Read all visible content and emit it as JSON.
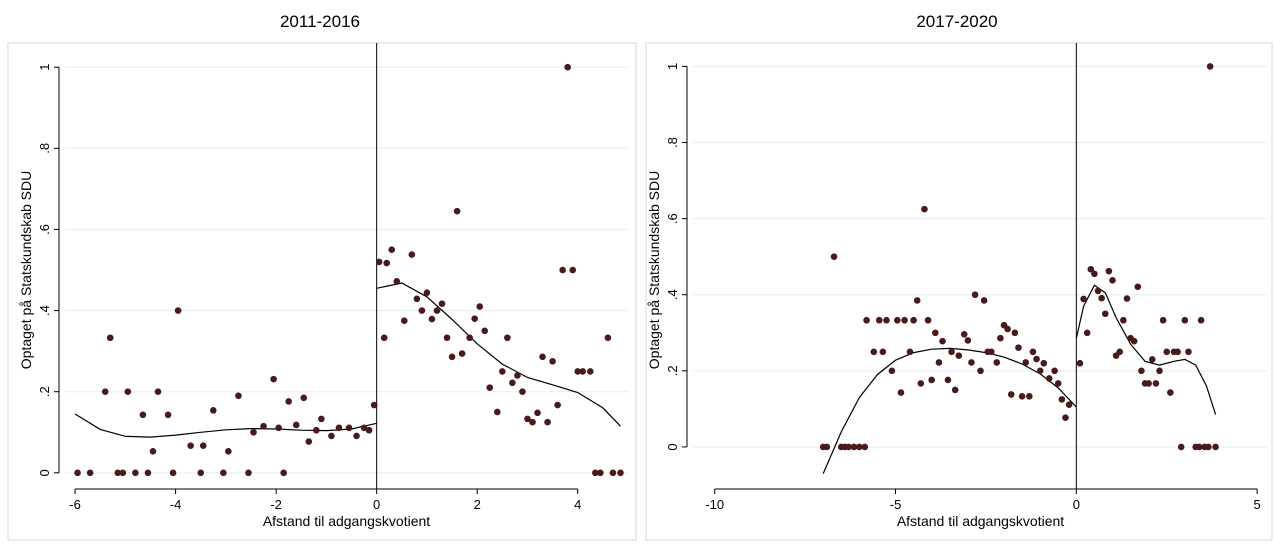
{
  "colors": {
    "marker": "#4a1a1a",
    "grid": "#e6eef2",
    "frame": "#cfd8dd",
    "axis": "#000000"
  },
  "chart_data": [
    {
      "type": "scatter",
      "title": "2011-2016",
      "xlabel": "Afstand til adgangskvotient",
      "ylabel": "Optaget på Statskundskab SDU",
      "xlim": [
        -6.2,
        5
      ],
      "ylim": [
        -0.03,
        1.03
      ],
      "xticks": [
        -6,
        -4,
        -2,
        0,
        2,
        4
      ],
      "xtick_labels": [
        "-6",
        "-4",
        "-2",
        "0",
        "2",
        "4"
      ],
      "yticks": [
        0,
        0.2,
        0.4,
        0.6,
        0.8,
        1
      ],
      "ytick_labels": [
        "0",
        ".2",
        ".4",
        ".6",
        ".8",
        "1"
      ],
      "grid": true,
      "cutoff": 0,
      "points": [
        [
          -5.95,
          0
        ],
        [
          -5.7,
          0
        ],
        [
          -5.4,
          0.2
        ],
        [
          -5.3,
          0.333
        ],
        [
          -5.15,
          0
        ],
        [
          -5.05,
          0
        ],
        [
          -4.95,
          0.2
        ],
        [
          -4.8,
          0
        ],
        [
          -4.65,
          0.143
        ],
        [
          -4.55,
          0
        ],
        [
          -4.45,
          0.053
        ],
        [
          -4.35,
          0.2
        ],
        [
          -4.15,
          0.143
        ],
        [
          -4.05,
          0
        ],
        [
          -3.95,
          0.4
        ],
        [
          -3.7,
          0.067
        ],
        [
          -3.5,
          0
        ],
        [
          -3.45,
          0.067
        ],
        [
          -3.25,
          0.154
        ],
        [
          -3.05,
          0
        ],
        [
          -2.95,
          0.053
        ],
        [
          -2.75,
          0.19
        ],
        [
          -2.55,
          0
        ],
        [
          -2.45,
          0.1
        ],
        [
          -2.25,
          0.115
        ],
        [
          -2.05,
          0.231
        ],
        [
          -1.95,
          0.111
        ],
        [
          -1.85,
          0
        ],
        [
          -1.75,
          0.176
        ],
        [
          -1.6,
          0.118
        ],
        [
          -1.45,
          0.185
        ],
        [
          -1.35,
          0.077
        ],
        [
          -1.2,
          0.105
        ],
        [
          -1.1,
          0.133
        ],
        [
          -0.9,
          0.091
        ],
        [
          -0.75,
          0.111
        ],
        [
          -0.55,
          0.111
        ],
        [
          -0.4,
          0.091
        ],
        [
          -0.25,
          0.111
        ],
        [
          -0.15,
          0.105
        ],
        [
          -0.05,
          0.167
        ],
        [
          0.05,
          0.52
        ],
        [
          0.15,
          0.333
        ],
        [
          0.2,
          0.517
        ],
        [
          0.3,
          0.55
        ],
        [
          0.4,
          0.472
        ],
        [
          0.55,
          0.375
        ],
        [
          0.7,
          0.538
        ],
        [
          0.8,
          0.429
        ],
        [
          0.9,
          0.4
        ],
        [
          1.0,
          0.444
        ],
        [
          1.1,
          0.379
        ],
        [
          1.2,
          0.4
        ],
        [
          1.3,
          0.417
        ],
        [
          1.4,
          0.333
        ],
        [
          1.5,
          0.286
        ],
        [
          1.6,
          0.645
        ],
        [
          1.7,
          0.294
        ],
        [
          1.85,
          0.333
        ],
        [
          1.95,
          0.38
        ],
        [
          2.05,
          0.41
        ],
        [
          2.15,
          0.35
        ],
        [
          2.25,
          0.21
        ],
        [
          2.4,
          0.15
        ],
        [
          2.5,
          0.25
        ],
        [
          2.6,
          0.333
        ],
        [
          2.7,
          0.222
        ],
        [
          2.8,
          0.24
        ],
        [
          2.9,
          0.2
        ],
        [
          3.0,
          0.133
        ],
        [
          3.1,
          0.125
        ],
        [
          3.2,
          0.148
        ],
        [
          3.3,
          0.286
        ],
        [
          3.4,
          0.125
        ],
        [
          3.5,
          0.275
        ],
        [
          3.6,
          0.167
        ],
        [
          3.7,
          0.5
        ],
        [
          3.8,
          1.0
        ],
        [
          3.9,
          0.5
        ],
        [
          4.0,
          0.25
        ],
        [
          4.1,
          0.25
        ],
        [
          4.25,
          0.25
        ],
        [
          4.35,
          0
        ],
        [
          4.45,
          0
        ],
        [
          4.6,
          0.333
        ],
        [
          4.7,
          0
        ],
        [
          4.85,
          0
        ]
      ],
      "fit_left": [
        [
          -6,
          0.145
        ],
        [
          -5.5,
          0.107
        ],
        [
          -5,
          0.09
        ],
        [
          -4.5,
          0.088
        ],
        [
          -4,
          0.093
        ],
        [
          -3.5,
          0.1
        ],
        [
          -3,
          0.106
        ],
        [
          -2.5,
          0.109
        ],
        [
          -2,
          0.108
        ],
        [
          -1.5,
          0.105
        ],
        [
          -1,
          0.104
        ],
        [
          -0.5,
          0.108
        ],
        [
          0,
          0.122
        ]
      ],
      "fit_right": [
        [
          0,
          0.455
        ],
        [
          0.5,
          0.468
        ],
        [
          1,
          0.434
        ],
        [
          1.5,
          0.378
        ],
        [
          2,
          0.318
        ],
        [
          2.5,
          0.268
        ],
        [
          3,
          0.235
        ],
        [
          3.5,
          0.217
        ],
        [
          4,
          0.198
        ],
        [
          4.5,
          0.16
        ],
        [
          4.85,
          0.115
        ]
      ]
    },
    {
      "type": "scatter",
      "title": "2017-2020",
      "xlabel": "Afstand til adgangskvotient",
      "ylabel": "Optaget på Statskundskab SDU",
      "xlim": [
        -10.6,
        5.3
      ],
      "ylim": [
        -0.1,
        1.03
      ],
      "xticks": [
        -10,
        -5,
        0,
        5
      ],
      "xtick_labels": [
        "-10",
        "-5",
        "0",
        "5"
      ],
      "yticks": [
        0,
        0.2,
        0.4,
        0.6,
        0.8,
        1
      ],
      "ytick_labels": [
        "0",
        ".2",
        ".4",
        ".6",
        ".8",
        "1"
      ],
      "grid": true,
      "cutoff": 0,
      "points": [
        [
          -7,
          0
        ],
        [
          -6.9,
          0
        ],
        [
          -6.7,
          0.5
        ],
        [
          -6.5,
          0
        ],
        [
          -6.4,
          0
        ],
        [
          -6.3,
          0
        ],
        [
          -6.15,
          0
        ],
        [
          -6,
          0
        ],
        [
          -5.85,
          0
        ],
        [
          -5.8,
          0.333
        ],
        [
          -5.6,
          0.25
        ],
        [
          -5.45,
          0.333
        ],
        [
          -5.35,
          0.25
        ],
        [
          -5.25,
          0.333
        ],
        [
          -5.1,
          0.2
        ],
        [
          -4.95,
          0.333
        ],
        [
          -4.85,
          0.143
        ],
        [
          -4.75,
          0.333
        ],
        [
          -4.6,
          0.25
        ],
        [
          -4.5,
          0.333
        ],
        [
          -4.4,
          0.385
        ],
        [
          -4.3,
          0.167
        ],
        [
          -4.2,
          0.625
        ],
        [
          -4.1,
          0.333
        ],
        [
          -4.0,
          0.176
        ],
        [
          -3.9,
          0.3
        ],
        [
          -3.8,
          0.222
        ],
        [
          -3.7,
          0.278
        ],
        [
          -3.55,
          0.176
        ],
        [
          -3.45,
          0.25
        ],
        [
          -3.35,
          0.15
        ],
        [
          -3.25,
          0.24
        ],
        [
          -3.1,
          0.296
        ],
        [
          -3.0,
          0.28
        ],
        [
          -2.9,
          0.222
        ],
        [
          -2.8,
          0.4
        ],
        [
          -2.65,
          0.2
        ],
        [
          -2.55,
          0.385
        ],
        [
          -2.45,
          0.25
        ],
        [
          -2.35,
          0.25
        ],
        [
          -2.2,
          0.222
        ],
        [
          -2.1,
          0.286
        ],
        [
          -2.0,
          0.32
        ],
        [
          -1.9,
          0.31
        ],
        [
          -1.8,
          0.138
        ],
        [
          -1.7,
          0.3
        ],
        [
          -1.6,
          0.261
        ],
        [
          -1.5,
          0.133
        ],
        [
          -1.4,
          0.222
        ],
        [
          -1.3,
          0.133
        ],
        [
          -1.2,
          0.25
        ],
        [
          -1.1,
          0.231
        ],
        [
          -1.0,
          0.2
        ],
        [
          -0.9,
          0.22
        ],
        [
          -0.75,
          0.18
        ],
        [
          -0.6,
          0.2
        ],
        [
          -0.5,
          0.167
        ],
        [
          -0.4,
          0.125
        ],
        [
          -0.3,
          0.077
        ],
        [
          -0.2,
          0.111
        ],
        [
          0.1,
          0.22
        ],
        [
          0.2,
          0.389
        ],
        [
          0.3,
          0.3
        ],
        [
          0.4,
          0.467
        ],
        [
          0.5,
          0.455
        ],
        [
          0.6,
          0.41
        ],
        [
          0.7,
          0.391
        ],
        [
          0.8,
          0.35
        ],
        [
          0.9,
          0.462
        ],
        [
          1.0,
          0.438
        ],
        [
          1.1,
          0.24
        ],
        [
          1.2,
          0.25
        ],
        [
          1.3,
          0.333
        ],
        [
          1.4,
          0.39
        ],
        [
          1.5,
          0.286
        ],
        [
          1.6,
          0.278
        ],
        [
          1.7,
          0.421
        ],
        [
          1.8,
          0.2
        ],
        [
          1.9,
          0.167
        ],
        [
          2.0,
          0.167
        ],
        [
          2.1,
          0.23
        ],
        [
          2.2,
          0.167
        ],
        [
          2.3,
          0.2
        ],
        [
          2.4,
          0.333
        ],
        [
          2.5,
          0.25
        ],
        [
          2.6,
          0.143
        ],
        [
          2.7,
          0.25
        ],
        [
          2.8,
          0.25
        ],
        [
          2.9,
          0
        ],
        [
          3.0,
          0.333
        ],
        [
          3.1,
          0.25
        ],
        [
          3.3,
          0
        ],
        [
          3.4,
          0
        ],
        [
          3.45,
          0.333
        ],
        [
          3.55,
          0
        ],
        [
          3.65,
          0
        ],
        [
          3.7,
          1.0
        ],
        [
          3.85,
          0
        ]
      ],
      "fit_left": [
        [
          -7,
          -0.07
        ],
        [
          -6.5,
          0.04
        ],
        [
          -6,
          0.13
        ],
        [
          -5.5,
          0.19
        ],
        [
          -5,
          0.228
        ],
        [
          -4.5,
          0.248
        ],
        [
          -4,
          0.257
        ],
        [
          -3.5,
          0.259
        ],
        [
          -3,
          0.255
        ],
        [
          -2.5,
          0.248
        ],
        [
          -2,
          0.236
        ],
        [
          -1.5,
          0.218
        ],
        [
          -1,
          0.192
        ],
        [
          -0.5,
          0.155
        ],
        [
          0,
          0.105
        ]
      ],
      "fit_right": [
        [
          0,
          0.285
        ],
        [
          0.2,
          0.37
        ],
        [
          0.5,
          0.425
        ],
        [
          0.8,
          0.405
        ],
        [
          1.1,
          0.34
        ],
        [
          1.5,
          0.27
        ],
        [
          1.9,
          0.225
        ],
        [
          2.3,
          0.215
        ],
        [
          2.7,
          0.225
        ],
        [
          3.0,
          0.23
        ],
        [
          3.3,
          0.215
        ],
        [
          3.6,
          0.16
        ],
        [
          3.85,
          0.085
        ]
      ]
    }
  ]
}
